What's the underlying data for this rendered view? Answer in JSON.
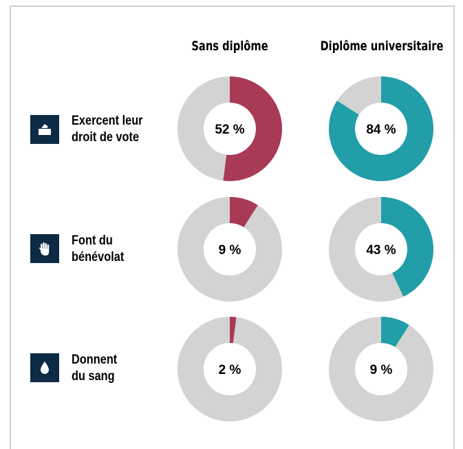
{
  "chart_data": {
    "type": "pie",
    "columns": [
      "Sans diplôme",
      "Diplôme universitaire"
    ],
    "rows": [
      {
        "label_lines": [
          "Exercent leur",
          "droit de vote"
        ],
        "icon": "ballot-box-icon",
        "values": [
          52,
          84
        ],
        "labels": [
          "52 %",
          "84 %"
        ]
      },
      {
        "label_lines": [
          "Font du",
          "bénévolat"
        ],
        "icon": "raised-hand-icon",
        "values": [
          9,
          43
        ],
        "labels": [
          "9 %",
          "43 %"
        ]
      },
      {
        "label_lines": [
          "Donnent",
          "du sang"
        ],
        "icon": "blood-drop-icon",
        "values": [
          2,
          9
        ],
        "labels": [
          "2 %",
          "9 %"
        ]
      }
    ],
    "unit": "%",
    "colors": {
      "sans_diplome": "#a93a55",
      "diplome_universitaire": "#219ea8",
      "remainder": "#d3d3d3",
      "icon_bg": "#0d2b45"
    }
  }
}
